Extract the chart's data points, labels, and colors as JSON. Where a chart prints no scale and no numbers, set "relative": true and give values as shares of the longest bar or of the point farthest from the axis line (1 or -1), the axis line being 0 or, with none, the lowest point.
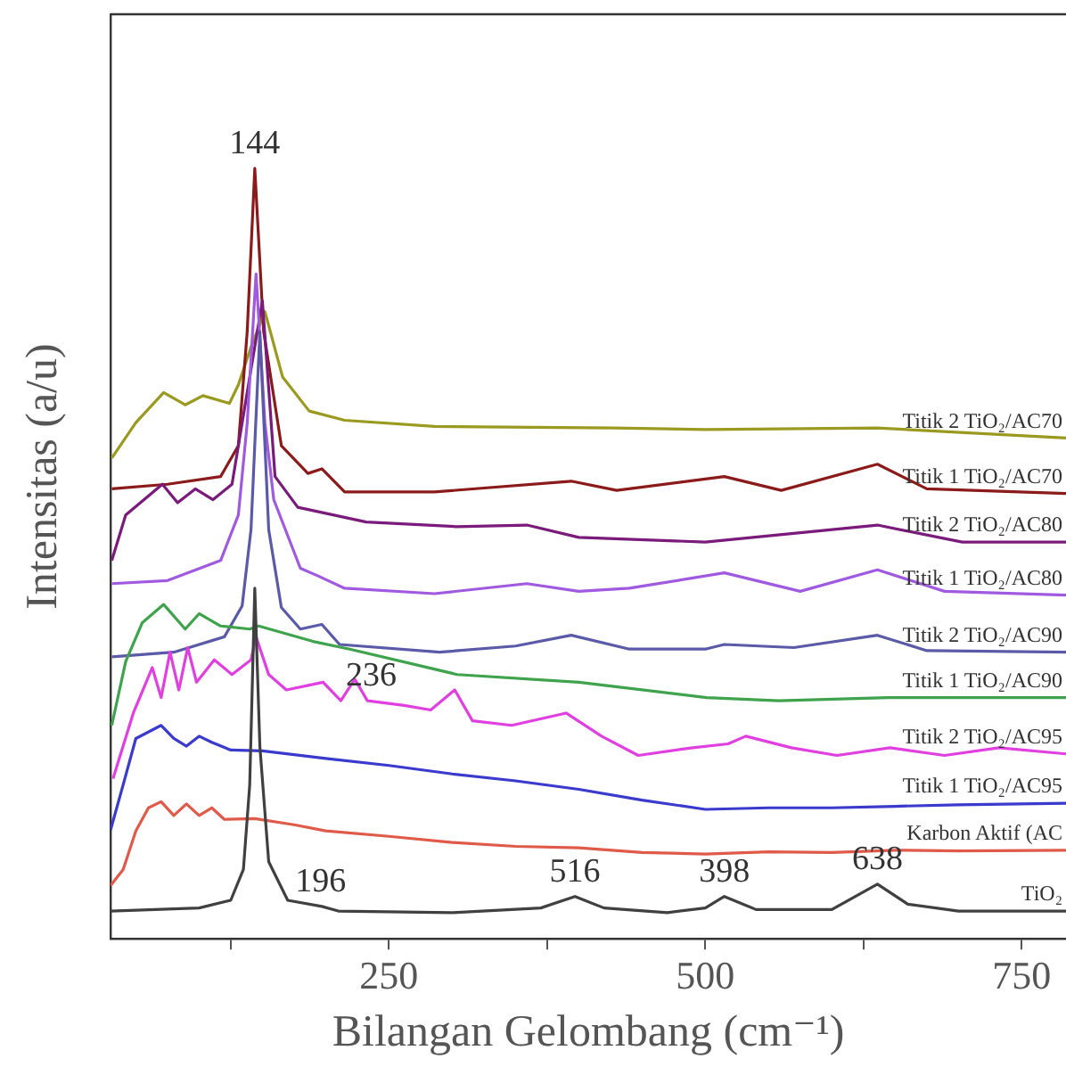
{
  "chart_data": {
    "type": "line",
    "relative": true,
    "xlabel": "Bilangan Gelombang (cm⁻¹)",
    "ylabel": "Intensitas (a/u)",
    "xlim": [
      30,
      785
    ],
    "xticks": [
      {
        "value": 125,
        "label": null
      },
      250,
      {
        "value": 375,
        "label": null
      },
      500,
      {
        "value": 625,
        "label": null
      },
      750
    ],
    "grid": false,
    "legend": false,
    "marker": "none",
    "line_style": "solid",
    "annotations": [
      {
        "text": "144",
        "x": 144,
        "y": 1
      },
      {
        "text": "196",
        "x": 196,
        "y": 0.042
      },
      {
        "text": "236",
        "x": 236,
        "y": 0.309
      },
      {
        "text": "516",
        "x": 397,
        "y": 0.055
      },
      {
        "text": "398",
        "x": 515,
        "y": 0.055
      },
      {
        "text": "638",
        "x": 636,
        "y": 0.071
      }
    ],
    "series": [
      {
        "name": "TiO₂",
        "color": "#404040",
        "x": [
          30,
          100,
          125,
          135,
          140,
          144,
          148,
          155,
          170,
          197,
          210,
          300,
          370,
          397,
          420,
          470,
          500,
          515,
          540,
          600,
          636,
          660,
          700,
          785
        ],
        "values": [
          0.036,
          0.04,
          0.05,
          0.09,
          0.2,
          0.455,
          0.25,
          0.1,
          0.05,
          0.042,
          0.036,
          0.034,
          0.04,
          0.055,
          0.04,
          0.034,
          0.04,
          0.055,
          0.038,
          0.038,
          0.071,
          0.045,
          0.036,
          0.036
        ]
      },
      {
        "name": "Karbon Aktif (AC",
        "color": "#e05a4a",
        "x": [
          30,
          40,
          50,
          60,
          70,
          80,
          90,
          100,
          110,
          120,
          144,
          175,
          200,
          250,
          300,
          350,
          400,
          450,
          500,
          550,
          600,
          650,
          700,
          785
        ],
        "values": [
          0.069,
          0.09,
          0.14,
          0.17,
          0.178,
          0.16,
          0.175,
          0.16,
          0.17,
          0.155,
          0.156,
          0.148,
          0.14,
          0.133,
          0.125,
          0.12,
          0.118,
          0.112,
          0.11,
          0.113,
          0.112,
          0.115,
          0.114,
          0.115
        ]
      },
      {
        "name": "Titik 1 TiO₂/AC95",
        "color": "#3a3acc",
        "x": [
          30,
          40,
          50,
          70,
          80,
          90,
          100,
          110,
          125,
          150,
          200,
          250,
          300,
          350,
          400,
          450,
          500,
          550,
          600,
          650,
          700,
          785
        ],
        "values": [
          0.141,
          0.2,
          0.26,
          0.277,
          0.26,
          0.25,
          0.263,
          0.255,
          0.245,
          0.244,
          0.234,
          0.225,
          0.214,
          0.205,
          0.194,
          0.18,
          0.168,
          0.17,
          0.17,
          0.172,
          0.174,
          0.176
        ]
      },
      {
        "name": "Titik 2 TiO₂/AC95",
        "color": "#e040e0",
        "x": [
          32,
          48,
          63,
          70,
          77,
          84,
          91,
          98,
          112,
          126,
          141,
          145,
          155,
          169,
          198,
          212,
          223,
          233,
          262,
          283,
          302,
          316,
          347,
          390,
          418,
          447,
          490,
          518,
          532,
          568,
          604,
          646,
          689,
          732,
          785
        ],
        "values": [
          0.208,
          0.293,
          0.352,
          0.313,
          0.372,
          0.323,
          0.378,
          0.333,
          0.362,
          0.343,
          0.362,
          0.392,
          0.343,
          0.323,
          0.333,
          0.309,
          0.337,
          0.309,
          0.303,
          0.297,
          0.323,
          0.283,
          0.277,
          0.293,
          0.263,
          0.238,
          0.248,
          0.253,
          0.263,
          0.248,
          0.238,
          0.248,
          0.238,
          0.248,
          0.24
        ]
      },
      {
        "name": "Titik 1 TiO₂/AC90",
        "color": "#3fa34d",
        "x": [
          31,
          42,
          55,
          72,
          89,
          100,
          117,
          140,
          147,
          190,
          219,
          304,
          400,
          501,
          558,
          644,
          785
        ],
        "values": [
          0.277,
          0.36,
          0.41,
          0.434,
          0.402,
          0.422,
          0.406,
          0.402,
          0.406,
          0.386,
          0.376,
          0.343,
          0.333,
          0.313,
          0.309,
          0.313,
          0.313
        ]
      },
      {
        "name": "Titik 2 TiO₂/AC90",
        "color": "#5a5aa8",
        "x": [
          31,
          80,
          120,
          134,
          141,
          148,
          155,
          165,
          180,
          197,
          211,
          290,
          350,
          394,
          440,
          500,
          515,
          570,
          636,
          675,
          785
        ],
        "values": [
          0.366,
          0.372,
          0.392,
          0.432,
          0.531,
          0.788,
          0.531,
          0.43,
          0.402,
          0.408,
          0.382,
          0.372,
          0.38,
          0.394,
          0.376,
          0.376,
          0.382,
          0.378,
          0.394,
          0.374,
          0.372
        ]
      },
      {
        "name": "Titik 1 TiO₂/AC80",
        "color": "#a05ae0",
        "x": [
          31,
          75,
          117,
          131,
          138,
          145,
          152,
          159,
          180,
          194,
          215,
          286,
          359,
          400,
          440,
          515,
          575,
          636,
          689,
          785
        ],
        "values": [
          0.461,
          0.465,
          0.491,
          0.55,
          0.669,
          0.863,
          0.669,
          0.57,
          0.481,
          0.471,
          0.455,
          0.448,
          0.461,
          0.451,
          0.455,
          0.475,
          0.451,
          0.479,
          0.451,
          0.446
        ]
      },
      {
        "name": "Titik 2 TiO₂/AC80",
        "color": "#7a1a7a",
        "x": [
          31,
          42,
          71,
          83,
          97,
          111,
          126,
          140,
          150,
          160,
          178,
          232,
          303,
          359,
          400,
          500,
          636,
          703,
          785
        ],
        "values": [
          0.491,
          0.55,
          0.59,
          0.566,
          0.584,
          0.57,
          0.59,
          0.729,
          0.828,
          0.6,
          0.56,
          0.541,
          0.535,
          0.537,
          0.521,
          0.515,
          0.537,
          0.515,
          0.515
        ]
      },
      {
        "name": "Titik 1 TiO₂/AC70",
        "color": "#8b1a1a",
        "x": [
          31,
          75,
          117,
          131,
          138,
          144,
          151,
          165,
          186,
          197,
          215,
          286,
          394,
          430,
          515,
          560,
          636,
          675,
          785
        ],
        "values": [
          0.584,
          0.59,
          0.6,
          0.64,
          0.788,
          1,
          0.788,
          0.64,
          0.604,
          0.61,
          0.58,
          0.58,
          0.594,
          0.582,
          0.6,
          0.582,
          0.616,
          0.584,
          0.578
        ]
      },
      {
        "name": "Titik 2 TiO₂/AC70",
        "color": "#9a9a20",
        "x": [
          31,
          50,
          72,
          89,
          103,
          124,
          131,
          141,
          152,
          166,
          187,
          215,
          286,
          428,
          500,
          636,
          785
        ],
        "values": [
          0.624,
          0.67,
          0.709,
          0.693,
          0.705,
          0.695,
          0.719,
          0.768,
          0.814,
          0.729,
          0.685,
          0.673,
          0.665,
          0.663,
          0.661,
          0.663,
          0.65
        ]
      }
    ]
  }
}
